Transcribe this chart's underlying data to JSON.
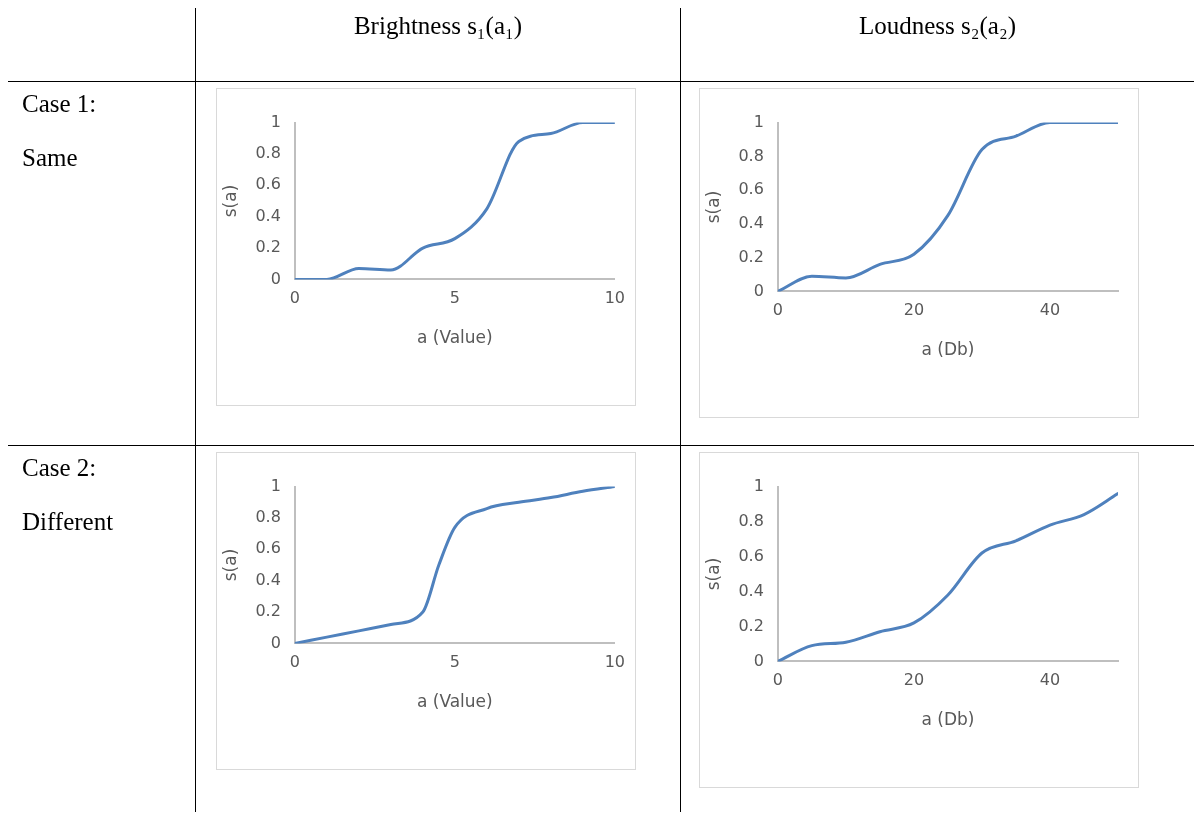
{
  "chart_data": [
    {
      "type": "line",
      "title": "Brightness s₁(a₁)",
      "annotations": [
        "Case 1:",
        "Same"
      ],
      "xlabel": "a (Value)",
      "ylabel": "s(a)",
      "x": [
        0,
        1,
        2,
        3,
        4,
        5,
        6,
        7,
        8,
        9,
        10
      ],
      "series": [
        {
          "color": "#4f81bd",
          "values": [
            0,
            0,
            0.07,
            0.06,
            0.2,
            0.26,
            0.45,
            0.88,
            0.93,
            1,
            1
          ]
        }
      ],
      "xlim": [
        0,
        10
      ],
      "xticks": [
        0,
        5,
        10
      ],
      "ylim": [
        0,
        1
      ],
      "yticks": [
        0,
        0.2,
        0.4,
        0.6,
        0.8,
        1
      ],
      "grid": false,
      "legend": false,
      "marker": "none",
      "line_style": "solid"
    },
    {
      "type": "line",
      "title": "Loudness s₂(a₂)",
      "xlabel": "a (Db)",
      "ylabel": "s(a)",
      "x": [
        0,
        5,
        10,
        15,
        20,
        25,
        30,
        35,
        40,
        45,
        50
      ],
      "series": [
        {
          "color": "#4f81bd",
          "values": [
            0,
            0.09,
            0.08,
            0.16,
            0.22,
            0.45,
            0.84,
            0.92,
            1,
            1,
            1
          ]
        }
      ],
      "xlim": [
        0,
        50
      ],
      "xticks": [
        0,
        20,
        40
      ],
      "ylim": [
        0,
        1
      ],
      "yticks": [
        0,
        0.2,
        0.4,
        0.6,
        0.8,
        1
      ],
      "grid": false,
      "legend": false,
      "marker": "none",
      "line_style": "solid"
    },
    {
      "type": "line",
      "annotations": [
        "Case 2:",
        "Different"
      ],
      "xlabel": "a (Value)",
      "ylabel": "s(a)",
      "x": [
        0,
        1,
        2,
        3,
        4,
        4.5,
        5,
        6,
        7,
        8,
        9,
        10
      ],
      "series": [
        {
          "color": "#4f81bd",
          "values": [
            0,
            0.04,
            0.08,
            0.12,
            0.2,
            0.5,
            0.74,
            0.86,
            0.9,
            0.93,
            0.97,
            1
          ]
        }
      ],
      "xlim": [
        0,
        10
      ],
      "xticks": [
        0,
        5,
        10
      ],
      "ylim": [
        0,
        1
      ],
      "yticks": [
        0,
        0.2,
        0.4,
        0.6,
        0.8,
        1
      ],
      "grid": false,
      "legend": false,
      "marker": "none",
      "line_style": "solid"
    },
    {
      "type": "line",
      "xlabel": "a (Db)",
      "ylabel": "s(a)",
      "x": [
        0,
        5,
        10,
        15,
        20,
        25,
        30,
        35,
        40,
        45,
        50
      ],
      "series": [
        {
          "color": "#4f81bd",
          "values": [
            0,
            0.09,
            0.11,
            0.17,
            0.22,
            0.38,
            0.62,
            0.69,
            0.78,
            0.84,
            0.96
          ]
        }
      ],
      "xlim": [
        0,
        50
      ],
      "xticks": [
        0,
        20,
        40
      ],
      "ylim": [
        0,
        1
      ],
      "yticks": [
        0,
        0.2,
        0.4,
        0.6,
        0.8,
        1
      ],
      "grid": false,
      "legend": false,
      "marker": "none",
      "line_style": "solid"
    }
  ]
}
